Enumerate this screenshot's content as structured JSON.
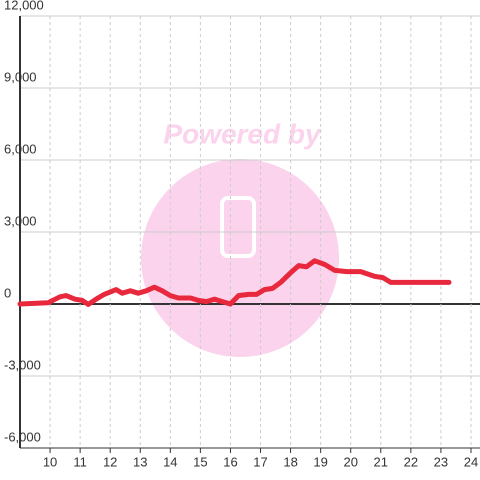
{
  "chart_data": {
    "type": "line",
    "watermark": "Powered by",
    "x": [
      9.0,
      9.93,
      10.33,
      10.53,
      10.83,
      11.07,
      11.27,
      11.53,
      11.8,
      12.2,
      12.4,
      12.67,
      12.93,
      13.2,
      13.47,
      13.73,
      14.0,
      14.27,
      14.67,
      14.93,
      15.2,
      15.47,
      15.73,
      16.0,
      16.27,
      16.6,
      16.87,
      17.13,
      17.4,
      17.67,
      18.0,
      18.27,
      18.53,
      18.8,
      19.13,
      19.47,
      19.87,
      20.33,
      20.8,
      21.07,
      21.33,
      21.67,
      22.33,
      23.27
    ],
    "series": [
      {
        "color": "#e8283c",
        "values": [
          0,
          50,
          300,
          350,
          200,
          150,
          -20,
          200,
          400,
          600,
          450,
          550,
          450,
          550,
          700,
          550,
          350,
          250,
          250,
          150,
          100,
          200,
          100,
          0,
          350,
          400,
          400,
          600,
          650,
          900,
          1300,
          1600,
          1550,
          1800,
          1650,
          1400,
          1350,
          1350,
          1150,
          1100,
          900,
          900,
          900,
          900
        ]
      }
    ],
    "xlim": [
      9,
      24.3
    ],
    "ylim": [
      -6000,
      12000
    ],
    "xticks": [
      10,
      11,
      12,
      13,
      14,
      15,
      16,
      17,
      18,
      19,
      20,
      21,
      22,
      23,
      24
    ],
    "yticks": [
      {
        "value": -6000,
        "label": "-6,000"
      },
      {
        "value": -3000,
        "label": "-3,000"
      },
      0,
      {
        "value": 3000,
        "label": "3,000"
      },
      {
        "value": 6000,
        "label": "6,000"
      },
      {
        "value": 9000,
        "label": "9,000"
      },
      {
        "value": 12000,
        "label": "12,000"
      }
    ],
    "grid": true
  }
}
